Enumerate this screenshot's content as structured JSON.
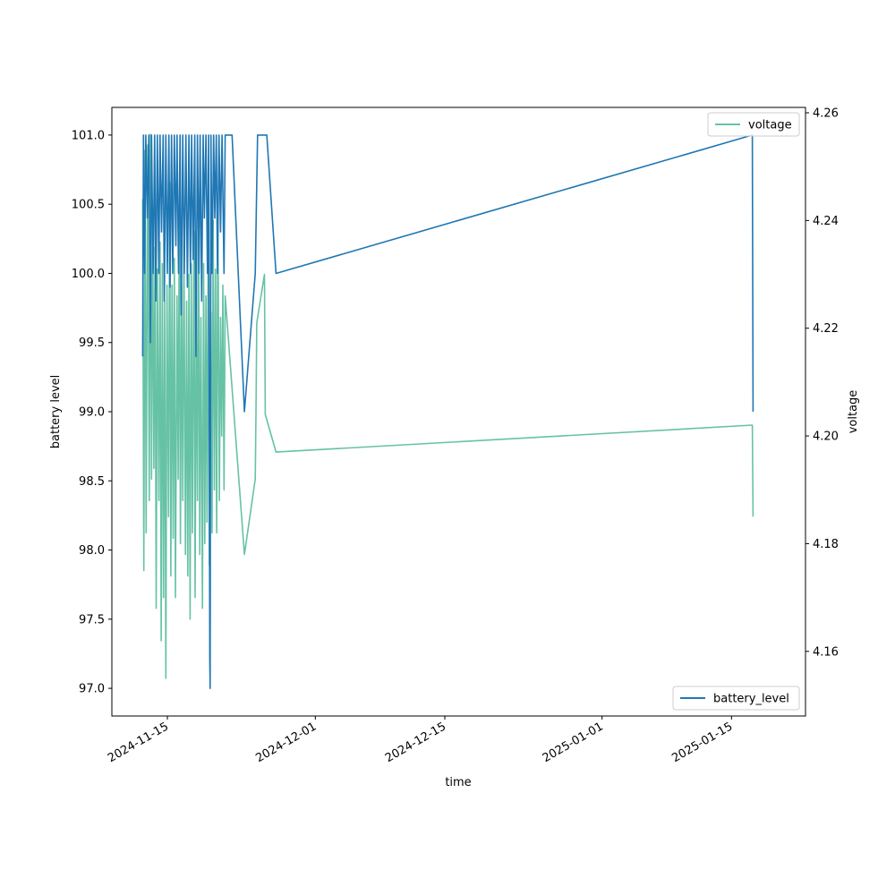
{
  "chart_data": {
    "type": "line",
    "title": "",
    "xlabel": "time",
    "ylabel_left": "battery level",
    "ylabel_right": "voltage",
    "xlim": [
      "2024-11-09",
      "2025-01-23"
    ],
    "ylim_left": [
      96.8,
      101.2
    ],
    "ylim_right": [
      4.148,
      4.261
    ],
    "x_ticks": [
      "2024-11-15",
      "2024-12-01",
      "2024-12-15",
      "2025-01-01",
      "2025-01-15"
    ],
    "y_ticks_left": [
      "97.0",
      "97.5",
      "98.0",
      "98.5",
      "99.0",
      "99.5",
      "100.0",
      "100.5",
      "101.0"
    ],
    "y_ticks_right": [
      "4.16",
      "4.18",
      "4.20",
      "4.22",
      "4.24",
      "4.26"
    ],
    "grid": false,
    "series": [
      {
        "name": "battery_level",
        "axis": "left",
        "color": "#1f77b4",
        "legend_position": "lower-right",
        "points": [
          [
            "2024-11-12T08:00",
            99.4
          ],
          [
            "2024-11-12T10:00",
            101.0
          ],
          [
            "2024-11-12T13:00",
            100.0
          ],
          [
            "2024-11-12T16:00",
            101.0
          ],
          [
            "2024-11-12T20:00",
            100.4
          ],
          [
            "2024-11-13T00:00",
            101.0
          ],
          [
            "2024-11-13T04:00",
            99.5
          ],
          [
            "2024-11-13T07:00",
            101.0
          ],
          [
            "2024-11-13T11:00",
            100.0
          ],
          [
            "2024-11-13T15:00",
            101.0
          ],
          [
            "2024-11-13T18:00",
            99.8
          ],
          [
            "2024-11-13T22:00",
            101.0
          ],
          [
            "2024-11-14T02:00",
            100.0
          ],
          [
            "2024-11-14T05:00",
            101.0
          ],
          [
            "2024-11-14T09:00",
            100.3
          ],
          [
            "2024-11-14T13:00",
            101.0
          ],
          [
            "2024-11-14T16:00",
            99.8
          ],
          [
            "2024-11-14T20:00",
            101.0
          ],
          [
            "2024-11-15T00:00",
            100.0
          ],
          [
            "2024-11-15T04:00",
            101.0
          ],
          [
            "2024-11-15T07:00",
            99.9
          ],
          [
            "2024-11-15T11:00",
            101.0
          ],
          [
            "2024-11-15T14:00",
            100.0
          ],
          [
            "2024-11-15T18:00",
            101.0
          ],
          [
            "2024-11-15T22:00",
            100.2
          ],
          [
            "2024-11-16T01:00",
            101.0
          ],
          [
            "2024-11-16T05:00",
            100.0
          ],
          [
            "2024-11-16T09:00",
            101.0
          ],
          [
            "2024-11-16T12:00",
            99.7
          ],
          [
            "2024-11-16T16:00",
            101.0
          ],
          [
            "2024-11-16T20:00",
            100.0
          ],
          [
            "2024-11-17T00:00",
            101.0
          ],
          [
            "2024-11-17T04:00",
            99.9
          ],
          [
            "2024-11-17T08:00",
            101.0
          ],
          [
            "2024-11-17T12:00",
            100.0
          ],
          [
            "2024-11-17T15:00",
            101.0
          ],
          [
            "2024-11-17T19:00",
            100.1
          ],
          [
            "2024-11-17T23:00",
            101.0
          ],
          [
            "2024-11-18T02:00",
            99.4
          ],
          [
            "2024-11-18T06:00",
            101.0
          ],
          [
            "2024-11-18T10:00",
            100.0
          ],
          [
            "2024-11-18T13:00",
            101.0
          ],
          [
            "2024-11-18T17:00",
            99.8
          ],
          [
            "2024-11-18T21:00",
            101.0
          ],
          [
            "2024-11-19T00:00",
            100.4
          ],
          [
            "2024-11-19T04:00",
            101.0
          ],
          [
            "2024-11-19T08:00",
            100.0
          ],
          [
            "2024-11-19T11:00",
            101.0
          ],
          [
            "2024-11-19T14:00",
            97.2
          ],
          [
            "2024-11-19T15:00",
            97.0
          ],
          [
            "2024-11-19T17:00",
            101.0
          ],
          [
            "2024-11-19T20:00",
            100.0
          ],
          [
            "2024-11-20T00:00",
            101.0
          ],
          [
            "2024-11-20T03:00",
            100.4
          ],
          [
            "2024-11-20T07:00",
            101.0
          ],
          [
            "2024-11-20T10:00",
            100.0
          ],
          [
            "2024-11-20T14:00",
            101.0
          ],
          [
            "2024-11-20T18:00",
            100.3
          ],
          [
            "2024-11-20T22:00",
            101.0
          ],
          [
            "2024-11-21T03:00",
            100.0
          ],
          [
            "2024-11-21T06:00",
            101.0
          ],
          [
            "2024-11-22T00:00",
            101.0
          ],
          [
            "2024-11-23T08:00",
            99.0
          ],
          [
            "2024-11-24T12:00",
            100.0
          ],
          [
            "2024-11-24T18:00",
            101.0
          ],
          [
            "2024-11-25T18:00",
            101.0
          ],
          [
            "2024-11-26T18:00",
            100.0
          ],
          [
            "2025-01-17T06:00",
            101.0
          ],
          [
            "2025-01-17T08:00",
            99.0
          ]
        ]
      },
      {
        "name": "voltage",
        "axis": "right",
        "color": "#66c2a5",
        "legend_position": "upper-right",
        "points": [
          [
            "2024-11-12T08:00",
            4.244
          ],
          [
            "2024-11-12T11:00",
            4.175
          ],
          [
            "2024-11-12T14:00",
            4.253
          ],
          [
            "2024-11-12T17:00",
            4.182
          ],
          [
            "2024-11-12T21:00",
            4.254
          ],
          [
            "2024-11-13T01:00",
            4.188
          ],
          [
            "2024-11-13T04:00",
            4.256
          ],
          [
            "2024-11-13T07:00",
            4.192
          ],
          [
            "2024-11-13T10:00",
            4.24
          ],
          [
            "2024-11-13T13:00",
            4.194
          ],
          [
            "2024-11-13T16:00",
            4.235
          ],
          [
            "2024-11-13T19:00",
            4.168
          ],
          [
            "2024-11-13T22:00",
            4.231
          ],
          [
            "2024-11-14T02:00",
            4.188
          ],
          [
            "2024-11-14T05:00",
            4.236
          ],
          [
            "2024-11-14T08:00",
            4.162
          ],
          [
            "2024-11-14T11:00",
            4.232
          ],
          [
            "2024-11-14T14:00",
            4.17
          ],
          [
            "2024-11-14T17:00",
            4.225
          ],
          [
            "2024-11-14T20:00",
            4.155
          ],
          [
            "2024-11-14T23:00",
            4.228
          ],
          [
            "2024-11-15T03:00",
            4.185
          ],
          [
            "2024-11-15T06:00",
            4.247
          ],
          [
            "2024-11-15T09:00",
            4.174
          ],
          [
            "2024-11-15T12:00",
            4.228
          ],
          [
            "2024-11-15T15:00",
            4.181
          ],
          [
            "2024-11-15T18:00",
            4.233
          ],
          [
            "2024-11-15T21:00",
            4.17
          ],
          [
            "2024-11-16T01:00",
            4.226
          ],
          [
            "2024-11-16T04:00",
            4.192
          ],
          [
            "2024-11-16T07:00",
            4.241
          ],
          [
            "2024-11-16T10:00",
            4.18
          ],
          [
            "2024-11-16T13:00",
            4.228
          ],
          [
            "2024-11-16T16:00",
            4.188
          ],
          [
            "2024-11-16T19:00",
            4.236
          ],
          [
            "2024-11-16T23:00",
            4.178
          ],
          [
            "2024-11-17T02:00",
            4.225
          ],
          [
            "2024-11-17T05:00",
            4.174
          ],
          [
            "2024-11-17T08:00",
            4.23
          ],
          [
            "2024-11-17T11:00",
            4.166
          ],
          [
            "2024-11-17T14:00",
            4.232
          ],
          [
            "2024-11-17T17:00",
            4.182
          ],
          [
            "2024-11-17T21:00",
            4.238
          ],
          [
            "2024-11-18T00:00",
            4.17
          ],
          [
            "2024-11-18T03:00",
            4.228
          ],
          [
            "2024-11-18T06:00",
            4.188
          ],
          [
            "2024-11-18T09:00",
            4.24
          ],
          [
            "2024-11-18T12:00",
            4.178
          ],
          [
            "2024-11-18T15:00",
            4.222
          ],
          [
            "2024-11-18T19:00",
            4.168
          ],
          [
            "2024-11-18T22:00",
            4.232
          ],
          [
            "2024-11-19T01:00",
            4.18
          ],
          [
            "2024-11-19T04:00",
            4.226
          ],
          [
            "2024-11-19T07:00",
            4.184
          ],
          [
            "2024-11-19T10:00",
            4.236
          ],
          [
            "2024-11-19T13:00",
            4.176
          ],
          [
            "2024-11-19T17:00",
            4.223
          ],
          [
            "2024-11-19T20:00",
            4.182
          ],
          [
            "2024-11-19T23:00",
            4.24
          ],
          [
            "2024-11-20T02:00",
            4.19
          ],
          [
            "2024-11-20T05:00",
            4.231
          ],
          [
            "2024-11-20T08:00",
            4.182
          ],
          [
            "2024-11-20T11:00",
            4.244
          ],
          [
            "2024-11-20T15:00",
            4.188
          ],
          [
            "2024-11-20T18:00",
            4.222
          ],
          [
            "2024-11-20T21:00",
            4.2
          ],
          [
            "2024-11-21T00:00",
            4.228
          ],
          [
            "2024-11-21T03:00",
            4.19
          ],
          [
            "2024-11-21T06:00",
            4.226
          ],
          [
            "2024-11-23T08:00",
            4.178
          ],
          [
            "2024-11-24T12:00",
            4.192
          ],
          [
            "2024-11-24T14:00",
            4.204
          ],
          [
            "2024-11-24T16:00",
            4.221
          ],
          [
            "2024-11-25T12:00",
            4.23
          ],
          [
            "2024-11-25T14:00",
            4.204
          ],
          [
            "2024-11-26T18:00",
            4.197
          ],
          [
            "2025-01-17T06:00",
            4.202
          ],
          [
            "2025-01-17T08:00",
            4.185
          ]
        ]
      }
    ]
  }
}
